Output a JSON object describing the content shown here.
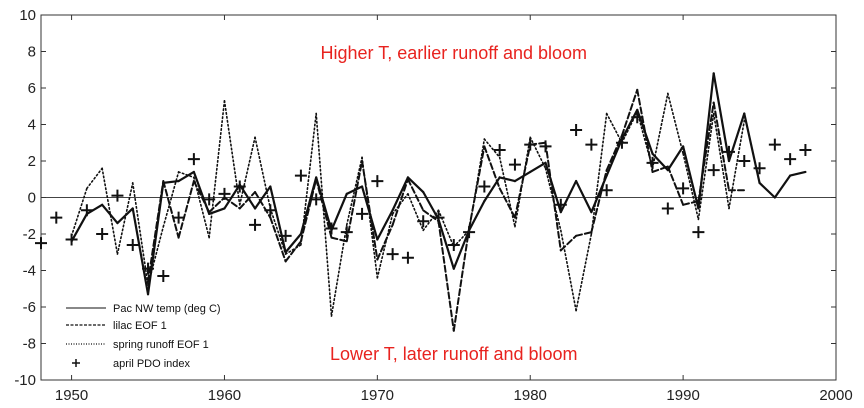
{
  "chart_data": {
    "type": "line",
    "title": "",
    "xlabel": "",
    "ylabel": "",
    "xlim": [
      1948,
      2000
    ],
    "ylim": [
      -10,
      10
    ],
    "xticks": [
      1950,
      1960,
      1970,
      1980,
      1990,
      2000
    ],
    "yticks": [
      -10,
      -8,
      -6,
      -4,
      -2,
      0,
      2,
      4,
      6,
      8,
      10
    ],
    "zero_line": true,
    "grid": false,
    "legend_position": "bottom-left",
    "annotations": [
      {
        "text": "Higher T, earlier runoff and bloom",
        "x": 1975,
        "y": 7.6,
        "color": "#e8231f"
      },
      {
        "text": "Lower T, later runoff and bloom",
        "x": 1975,
        "y": -8.9,
        "color": "#e8231f"
      }
    ],
    "series": [
      {
        "name": "Pac NW temp (deg C)",
        "style": "solid",
        "x": [
          1950,
          1951,
          1952,
          1953,
          1954,
          1955,
          1956,
          1957,
          1958,
          1959,
          1960,
          1961,
          1962,
          1963,
          1964,
          1965,
          1966,
          1967,
          1968,
          1969,
          1970,
          1971,
          1972,
          1973,
          1974,
          1975,
          1976,
          1977,
          1978,
          1979,
          1980,
          1981,
          1982,
          1983,
          1984,
          1985,
          1986,
          1987,
          1988,
          1989,
          1990,
          1991,
          1992,
          1993,
          1994,
          1995,
          1996,
          1997,
          1998
        ],
        "values": [
          -2.4,
          -0.9,
          -0.4,
          -1.4,
          -0.6,
          -5.3,
          0.8,
          0.9,
          1.4,
          -0.9,
          -0.6,
          0.7,
          -0.6,
          0.6,
          -3.0,
          -2.0,
          1.1,
          -1.8,
          0.2,
          0.6,
          -2.3,
          -0.7,
          1.1,
          0.3,
          -1.2,
          -3.9,
          -1.8,
          -0.2,
          1.1,
          0.9,
          1.4,
          1.9,
          -0.8,
          0.9,
          -0.8,
          1.2,
          3.2,
          4.8,
          2.4,
          1.5,
          2.8,
          -0.6,
          6.8,
          2.0,
          4.6,
          0.8,
          0.0,
          1.2,
          1.4
        ]
      },
      {
        "name": "lilac EOF 1",
        "style": "dashed",
        "x": [
          1955,
          1956,
          1957,
          1958,
          1959,
          1960,
          1961,
          1962,
          1963,
          1964,
          1965,
          1966,
          1967,
          1968,
          1969,
          1970,
          1971,
          1972,
          1973,
          1974,
          1975,
          1976,
          1977,
          1978,
          1979,
          1980,
          1981,
          1982,
          1983,
          1984,
          1985,
          1986,
          1987,
          1988,
          1989,
          1990,
          1991,
          1992,
          1993,
          1994
        ],
        "values": [
          -4.6,
          0.9,
          -2.2,
          0.9,
          -0.8,
          0.0,
          -0.6,
          0.3,
          -1.1,
          -3.5,
          -2.4,
          1.0,
          -2.2,
          -2.4,
          2.0,
          -3.4,
          -1.5,
          1.0,
          -0.7,
          -1.3,
          -7.3,
          -1.7,
          2.8,
          0.5,
          -1.1,
          2.9,
          3.0,
          -2.9,
          -2.1,
          -1.9,
          1.5,
          3.4,
          5.9,
          1.4,
          1.7,
          -0.4,
          -0.2,
          5.2,
          0.4,
          0.4
        ]
      },
      {
        "name": "spring runoff EOF 1",
        "style": "dotted",
        "x": [
          1950,
          1951,
          1952,
          1953,
          1954,
          1955,
          1956,
          1957,
          1958,
          1959,
          1960,
          1961,
          1962,
          1963,
          1964,
          1965,
          1966,
          1967,
          1968,
          1969,
          1970,
          1971,
          1972,
          1973,
          1974,
          1975,
          1976,
          1977,
          1978,
          1979,
          1980,
          1981,
          1982,
          1983,
          1984,
          1985,
          1986,
          1987,
          1988,
          1989,
          1990,
          1991,
          1992,
          1993,
          1994
        ],
        "values": [
          -2.1,
          0.5,
          1.6,
          -3.1,
          0.8,
          -4.8,
          -1.6,
          1.4,
          1.1,
          -2.2,
          5.3,
          -0.4,
          3.3,
          -0.6,
          -3.1,
          -2.6,
          4.6,
          -6.5,
          -1.5,
          2.2,
          -4.4,
          -0.9,
          0.2,
          -1.8,
          -0.7,
          -2.7,
          -1.8,
          3.2,
          2.2,
          -1.6,
          3.3,
          1.6,
          -1.8,
          -6.2,
          -2.0,
          4.6,
          3.0,
          4.7,
          1.6,
          5.7,
          2.4,
          -1.2,
          4.6,
          -0.6,
          4.2
        ]
      },
      {
        "name": "april PDO index",
        "style": "plus",
        "x": [
          1948,
          1949,
          1950,
          1951,
          1952,
          1953,
          1954,
          1955,
          1956,
          1957,
          1958,
          1959,
          1960,
          1961,
          1962,
          1963,
          1964,
          1965,
          1966,
          1967,
          1968,
          1969,
          1970,
          1971,
          1972,
          1973,
          1974,
          1975,
          1976,
          1977,
          1978,
          1979,
          1980,
          1981,
          1982,
          1983,
          1984,
          1985,
          1986,
          1987,
          1988,
          1989,
          1990,
          1991,
          1992,
          1993,
          1994,
          1995,
          1996,
          1997,
          1998
        ],
        "values": [
          -2.5,
          -1.1,
          -2.3,
          -0.7,
          -2.0,
          0.1,
          -2.6,
          -3.9,
          -4.3,
          -1.1,
          2.1,
          -0.1,
          0.2,
          0.6,
          -1.5,
          -0.7,
          -2.1,
          1.2,
          -0.1,
          -1.7,
          -1.9,
          -0.9,
          0.9,
          -3.1,
          -3.3,
          -1.3,
          -1.1,
          -2.6,
          -1.9,
          0.6,
          2.6,
          1.8,
          2.9,
          2.8,
          -0.4,
          3.7,
          2.9,
          0.4,
          3.0,
          4.4,
          1.9,
          -0.6,
          0.5,
          -1.9,
          1.5,
          2.5,
          2.0,
          1.6,
          2.9,
          2.1,
          2.6
        ]
      }
    ]
  }
}
